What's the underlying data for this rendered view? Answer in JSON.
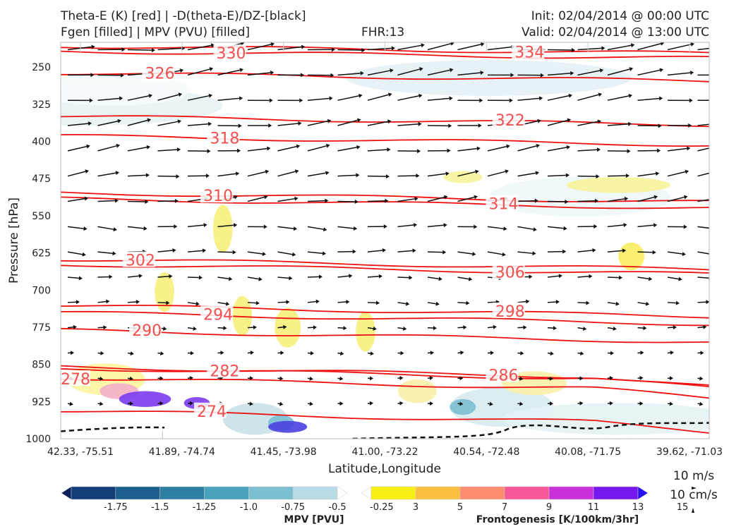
{
  "header": {
    "title_line1": "Theta-E (K) [red] | -D(theta-E)/DZ-[black]",
    "title_line2": "Fgen [filled] | MPV (PVU) [filled]",
    "fhr": "FHR:13",
    "init": "Init: 02/04/2014 @ 00:00 UTC",
    "valid": "Valid: 02/04/2014 @ 13:00 UTC"
  },
  "chart_data": {
    "type": "cross-section",
    "xlabel": "Latitude,Longitude",
    "ylabel": "Pressure [hPa]",
    "x_ticks": [
      "42.33, -75.51",
      "41.89, -74.74",
      "41.45, -73.98",
      "41.00, -73.22",
      "40.54, -72.48",
      "40.08, -71.75",
      "39.62, -71.03"
    ],
    "y_ticks": [
      250,
      325,
      400,
      475,
      550,
      625,
      700,
      775,
      850,
      925,
      1000
    ],
    "ylim": [
      1000,
      200
    ],
    "theta_e_contours": [
      {
        "label": "330",
        "p": 225,
        "x": 0.24
      },
      {
        "label": "334",
        "p": 215,
        "x": 0.7
      },
      {
        "label": "326",
        "p": 270,
        "x": 0.13
      },
      {
        "label": "322",
        "p": 358,
        "x": 0.67
      },
      {
        "label": "318",
        "p": 398,
        "x": 0.23
      },
      {
        "label": "314",
        "p": 525,
        "x": 0.66
      },
      {
        "label": "310",
        "p": 513,
        "x": 0.22
      },
      {
        "label": "306",
        "p": 658,
        "x": 0.67
      },
      {
        "label": "302",
        "p": 648,
        "x": 0.1
      },
      {
        "label": "298",
        "p": 742,
        "x": 0.67
      },
      {
        "label": "294",
        "p": 757,
        "x": 0.22
      },
      {
        "label": "290",
        "p": 793,
        "x": 0.11
      },
      {
        "label": "286",
        "p": 867,
        "x": 0.66
      },
      {
        "label": "282",
        "p": 870,
        "x": 0.23
      },
      {
        "label": "278",
        "p": 890,
        "x": 0.0
      },
      {
        "label": "274",
        "p": 957,
        "x": 0.21
      }
    ],
    "mpv_colorbar": {
      "title": "MPV [PVU]",
      "ticks": [
        "-1.75",
        "-1.5",
        "-1.25",
        "-1.0",
        "-0.75",
        "-0.5",
        "-0.25"
      ],
      "colors": [
        "#0b1e5e",
        "#123d78",
        "#1d5f8e",
        "#2e80a3",
        "#4aa1bc",
        "#7cbfd1",
        "#b8dbe6",
        "#ffffff"
      ]
    },
    "fgen_colorbar": {
      "title": "Frontogenesis [K/100km/3hr]",
      "ticks": [
        "3",
        "5",
        "7",
        "9",
        "11",
        "13",
        "15"
      ],
      "colors": [
        "#ffffff",
        "#f8f010",
        "#fcc040",
        "#fc8c70",
        "#f85898",
        "#c830d8",
        "#7818f0",
        "#2810f0"
      ]
    },
    "vector_key": {
      "line1": "10 m/s",
      "line2": "10 cm/s"
    }
  }
}
